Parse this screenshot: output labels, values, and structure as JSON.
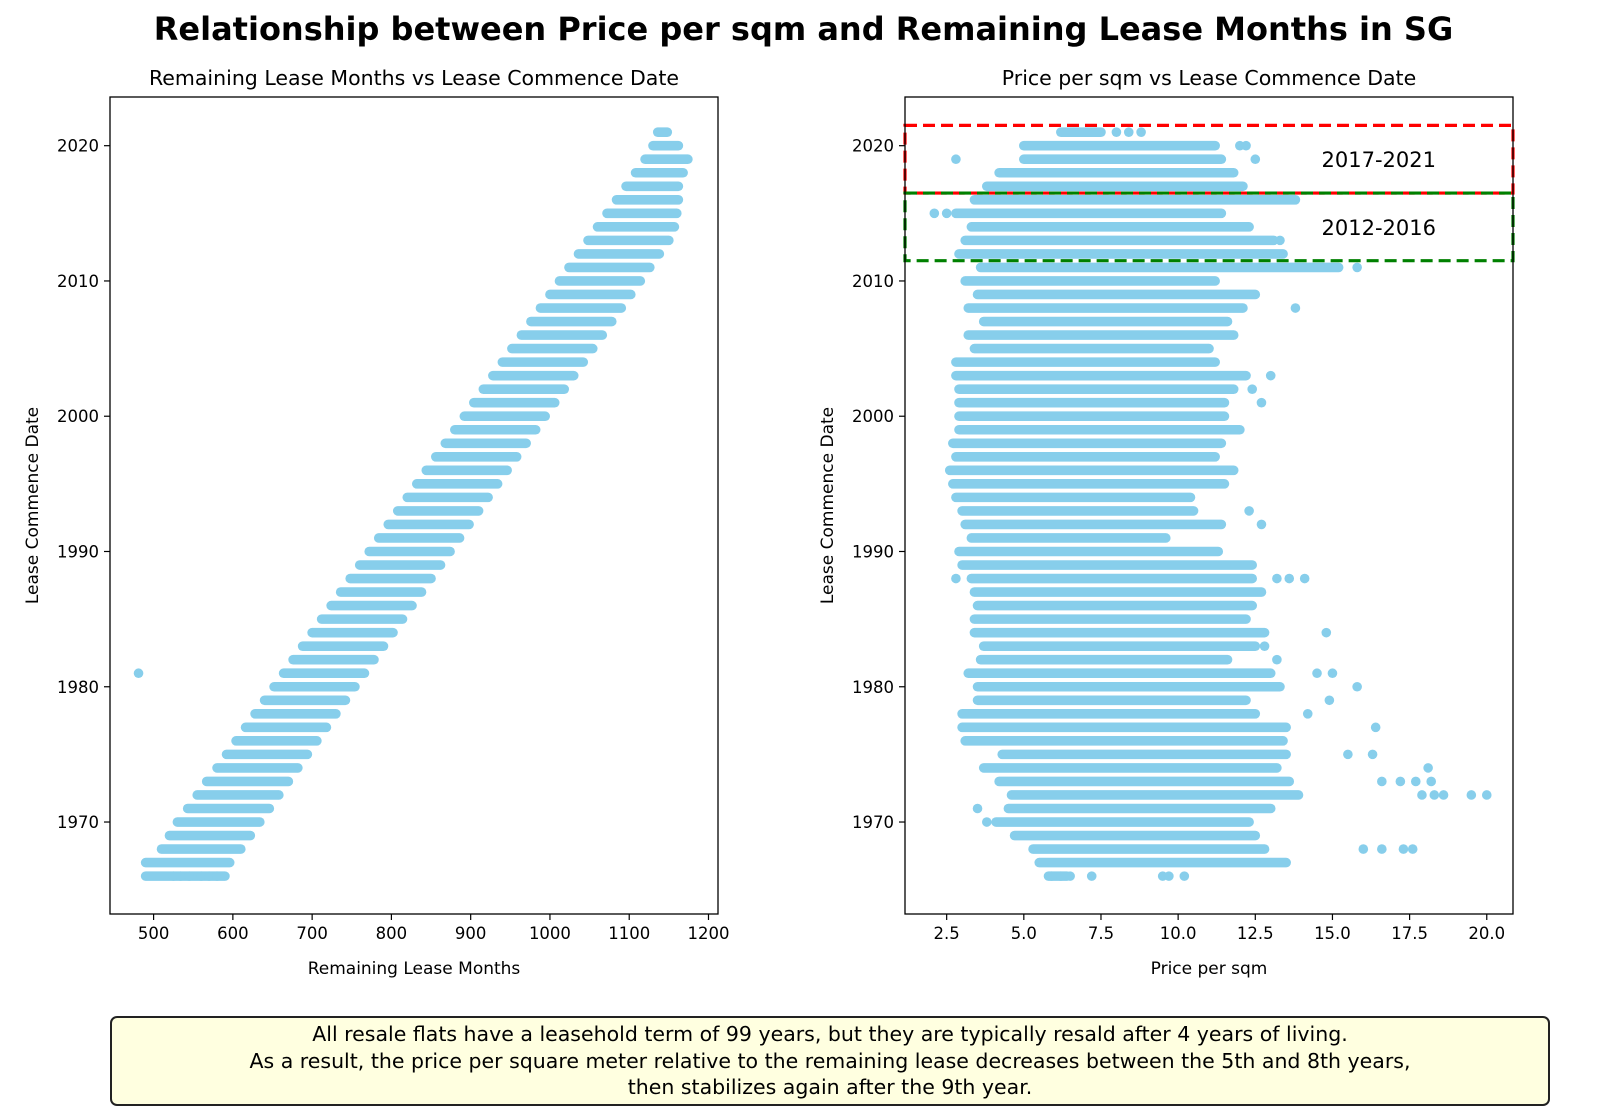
{
  "suptitle": "Relationship between Price per sqm and Remaining Lease Months in SG",
  "note": {
    "lines": [
      "All resale flats have a leasehold term of 99 years, but they are typically resald after 4 years of living.",
      "As a result, the price per square meter relative to the remaining lease decreases between the 5th and 8th years,",
      "then stabilizes again after the 9th year."
    ],
    "background": "#ffffe0"
  },
  "chart_data": [
    {
      "type": "scatter",
      "title": "Remaining Lease Months vs Lease Commence Date",
      "xlabel": "Remaining Lease Months",
      "ylabel": "Lease Commence Date",
      "xlim": [
        445,
        1212
      ],
      "ylim": [
        1963.2,
        2023.6
      ],
      "xticks": [
        500,
        600,
        700,
        800,
        900,
        1000,
        1100,
        1200
      ],
      "yticks": [
        1970,
        1980,
        1990,
        2000,
        2010,
        2020
      ],
      "marker_color": "#87ceeb",
      "grid": false,
      "rows": [
        {
          "year": 1966,
          "x_min": 490,
          "x_max": 590
        },
        {
          "year": 1967,
          "x_min": 490,
          "x_max": 596
        },
        {
          "year": 1968,
          "x_min": 510,
          "x_max": 610
        },
        {
          "year": 1969,
          "x_min": 520,
          "x_max": 622
        },
        {
          "year": 1970,
          "x_min": 530,
          "x_max": 634
        },
        {
          "year": 1971,
          "x_min": 543,
          "x_max": 646
        },
        {
          "year": 1972,
          "x_min": 555,
          "x_max": 658
        },
        {
          "year": 1973,
          "x_min": 567,
          "x_max": 670
        },
        {
          "year": 1974,
          "x_min": 580,
          "x_max": 682
        },
        {
          "year": 1975,
          "x_min": 592,
          "x_max": 694
        },
        {
          "year": 1976,
          "x_min": 604,
          "x_max": 706
        },
        {
          "year": 1977,
          "x_min": 616,
          "x_max": 718
        },
        {
          "year": 1978,
          "x_min": 628,
          "x_max": 730
        },
        {
          "year": 1979,
          "x_min": 640,
          "x_max": 742
        },
        {
          "year": 1980,
          "x_min": 652,
          "x_max": 754
        },
        {
          "year": 1981,
          "x_min": 664,
          "x_max": 766
        },
        {
          "year": 1982,
          "x_min": 676,
          "x_max": 778
        },
        {
          "year": 1983,
          "x_min": 688,
          "x_max": 790
        },
        {
          "year": 1984,
          "x_min": 700,
          "x_max": 802
        },
        {
          "year": 1985,
          "x_min": 712,
          "x_max": 814
        },
        {
          "year": 1986,
          "x_min": 724,
          "x_max": 826
        },
        {
          "year": 1987,
          "x_min": 736,
          "x_max": 838
        },
        {
          "year": 1988,
          "x_min": 748,
          "x_max": 850
        },
        {
          "year": 1989,
          "x_min": 760,
          "x_max": 862
        },
        {
          "year": 1990,
          "x_min": 772,
          "x_max": 874
        },
        {
          "year": 1991,
          "x_min": 784,
          "x_max": 886
        },
        {
          "year": 1992,
          "x_min": 796,
          "x_max": 898
        },
        {
          "year": 1993,
          "x_min": 808,
          "x_max": 910
        },
        {
          "year": 1994,
          "x_min": 820,
          "x_max": 922
        },
        {
          "year": 1995,
          "x_min": 832,
          "x_max": 934
        },
        {
          "year": 1996,
          "x_min": 844,
          "x_max": 946
        },
        {
          "year": 1997,
          "x_min": 856,
          "x_max": 958
        },
        {
          "year": 1998,
          "x_min": 868,
          "x_max": 970
        },
        {
          "year": 1999,
          "x_min": 880,
          "x_max": 982
        },
        {
          "year": 2000,
          "x_min": 892,
          "x_max": 994
        },
        {
          "year": 2001,
          "x_min": 904,
          "x_max": 1006
        },
        {
          "year": 2002,
          "x_min": 916,
          "x_max": 1018
        },
        {
          "year": 2003,
          "x_min": 928,
          "x_max": 1030
        },
        {
          "year": 2004,
          "x_min": 940,
          "x_max": 1042
        },
        {
          "year": 2005,
          "x_min": 952,
          "x_max": 1054
        },
        {
          "year": 2006,
          "x_min": 964,
          "x_max": 1066
        },
        {
          "year": 2007,
          "x_min": 976,
          "x_max": 1078
        },
        {
          "year": 2008,
          "x_min": 988,
          "x_max": 1090
        },
        {
          "year": 2009,
          "x_min": 1000,
          "x_max": 1102
        },
        {
          "year": 2010,
          "x_min": 1012,
          "x_max": 1114
        },
        {
          "year": 2011,
          "x_min": 1024,
          "x_max": 1126
        },
        {
          "year": 2012,
          "x_min": 1036,
          "x_max": 1138
        },
        {
          "year": 2013,
          "x_min": 1048,
          "x_max": 1150
        },
        {
          "year": 2014,
          "x_min": 1060,
          "x_max": 1157
        },
        {
          "year": 2015,
          "x_min": 1072,
          "x_max": 1160
        },
        {
          "year": 2016,
          "x_min": 1084,
          "x_max": 1162
        },
        {
          "year": 2017,
          "x_min": 1096,
          "x_max": 1162
        },
        {
          "year": 2018,
          "x_min": 1108,
          "x_max": 1168
        },
        {
          "year": 2019,
          "x_min": 1120,
          "x_max": 1174
        },
        {
          "year": 2020,
          "x_min": 1130,
          "x_max": 1162
        },
        {
          "year": 2021,
          "x_min": 1136,
          "x_max": 1148
        }
      ],
      "points": [
        {
          "x": 481,
          "y": 1981
        },
        {
          "x": 525,
          "y": 1966
        },
        {
          "x": 534,
          "y": 1966
        },
        {
          "x": 545,
          "y": 1966
        },
        {
          "x": 560,
          "y": 1966
        },
        {
          "x": 570,
          "y": 1966
        },
        {
          "x": 580,
          "y": 1966
        }
      ]
    },
    {
      "type": "scatter",
      "title": "Price per sqm vs Lease Commence Date",
      "xlabel": "Price per sqm",
      "ylabel": "Lease Commence Date",
      "xlim": [
        1.15,
        20.85
      ],
      "ylim": [
        1963.2,
        2023.6
      ],
      "xticks": [
        2.5,
        5.0,
        7.5,
        10.0,
        12.5,
        15.0,
        17.5,
        20.0
      ],
      "xtick_labels": [
        "2.5",
        "5.0",
        "7.5",
        "10.0",
        "12.5",
        "15.0",
        "17.5",
        "20.0"
      ],
      "yticks": [
        1970,
        1980,
        1990,
        2000,
        2010,
        2020
      ],
      "marker_color": "#87ceeb",
      "grid": false,
      "rows": [
        {
          "year": 1966,
          "x_min": 5.8,
          "x_max": 6.4
        },
        {
          "year": 1967,
          "x_min": 5.5,
          "x_max": 13.5
        },
        {
          "year": 1968,
          "x_min": 5.3,
          "x_max": 12.8
        },
        {
          "year": 1969,
          "x_min": 4.7,
          "x_max": 12.5
        },
        {
          "year": 1970,
          "x_min": 4.1,
          "x_max": 12.3
        },
        {
          "year": 1971,
          "x_min": 4.5,
          "x_max": 13.0
        },
        {
          "year": 1972,
          "x_min": 4.6,
          "x_max": 13.9
        },
        {
          "year": 1973,
          "x_min": 4.2,
          "x_max": 13.6
        },
        {
          "year": 1974,
          "x_min": 3.7,
          "x_max": 13.2
        },
        {
          "year": 1975,
          "x_min": 4.3,
          "x_max": 13.5
        },
        {
          "year": 1976,
          "x_min": 3.1,
          "x_max": 13.4
        },
        {
          "year": 1977,
          "x_min": 3.0,
          "x_max": 13.5
        },
        {
          "year": 1978,
          "x_min": 3.0,
          "x_max": 12.5
        },
        {
          "year": 1979,
          "x_min": 3.5,
          "x_max": 12.2
        },
        {
          "year": 1980,
          "x_min": 3.5,
          "x_max": 13.3
        },
        {
          "year": 1981,
          "x_min": 3.2,
          "x_max": 13.0
        },
        {
          "year": 1982,
          "x_min": 3.6,
          "x_max": 11.6
        },
        {
          "year": 1983,
          "x_min": 3.7,
          "x_max": 12.5
        },
        {
          "year": 1984,
          "x_min": 3.4,
          "x_max": 12.8
        },
        {
          "year": 1985,
          "x_min": 3.4,
          "x_max": 12.2
        },
        {
          "year": 1986,
          "x_min": 3.5,
          "x_max": 12.4
        },
        {
          "year": 1987,
          "x_min": 3.4,
          "x_max": 12.7
        },
        {
          "year": 1988,
          "x_min": 3.3,
          "x_max": 12.4
        },
        {
          "year": 1989,
          "x_min": 3.0,
          "x_max": 12.4
        },
        {
          "year": 1990,
          "x_min": 2.9,
          "x_max": 11.3
        },
        {
          "year": 1991,
          "x_min": 3.3,
          "x_max": 9.6
        },
        {
          "year": 1992,
          "x_min": 3.1,
          "x_max": 11.4
        },
        {
          "year": 1993,
          "x_min": 3.0,
          "x_max": 10.5
        },
        {
          "year": 1994,
          "x_min": 2.8,
          "x_max": 10.4
        },
        {
          "year": 1995,
          "x_min": 2.7,
          "x_max": 11.5
        },
        {
          "year": 1996,
          "x_min": 2.6,
          "x_max": 11.8
        },
        {
          "year": 1997,
          "x_min": 2.8,
          "x_max": 11.2
        },
        {
          "year": 1998,
          "x_min": 2.7,
          "x_max": 11.4
        },
        {
          "year": 1999,
          "x_min": 2.9,
          "x_max": 12.0
        },
        {
          "year": 2000,
          "x_min": 2.9,
          "x_max": 11.5
        },
        {
          "year": 2001,
          "x_min": 2.9,
          "x_max": 11.5
        },
        {
          "year": 2002,
          "x_min": 2.9,
          "x_max": 11.8
        },
        {
          "year": 2003,
          "x_min": 2.8,
          "x_max": 12.2
        },
        {
          "year": 2004,
          "x_min": 2.8,
          "x_max": 11.2
        },
        {
          "year": 2005,
          "x_min": 3.4,
          "x_max": 11.0
        },
        {
          "year": 2006,
          "x_min": 3.2,
          "x_max": 11.8
        },
        {
          "year": 2007,
          "x_min": 3.7,
          "x_max": 11.6
        },
        {
          "year": 2008,
          "x_min": 3.2,
          "x_max": 12.1
        },
        {
          "year": 2009,
          "x_min": 3.5,
          "x_max": 12.5
        },
        {
          "year": 2010,
          "x_min": 3.1,
          "x_max": 11.2
        },
        {
          "year": 2011,
          "x_min": 3.6,
          "x_max": 15.2
        },
        {
          "year": 2012,
          "x_min": 2.9,
          "x_max": 13.4
        },
        {
          "year": 2013,
          "x_min": 3.1,
          "x_max": 13.1
        },
        {
          "year": 2014,
          "x_min": 3.3,
          "x_max": 12.3
        },
        {
          "year": 2015,
          "x_min": 2.8,
          "x_max": 11.4
        },
        {
          "year": 2016,
          "x_min": 3.4,
          "x_max": 13.8
        },
        {
          "year": 2017,
          "x_min": 3.8,
          "x_max": 12.1
        },
        {
          "year": 2018,
          "x_min": 4.2,
          "x_max": 11.8
        },
        {
          "year": 2019,
          "x_min": 5.0,
          "x_max": 11.4
        },
        {
          "year": 2020,
          "x_min": 5.0,
          "x_max": 11.2
        },
        {
          "year": 2021,
          "x_min": 6.2,
          "x_max": 7.5
        }
      ],
      "points": [
        {
          "x": 2.1,
          "y": 2015
        },
        {
          "x": 2.5,
          "y": 2015
        },
        {
          "x": 2.8,
          "y": 2019
        },
        {
          "x": 2.8,
          "y": 1988
        },
        {
          "x": 8.0,
          "y": 2021
        },
        {
          "x": 8.4,
          "y": 2021
        },
        {
          "x": 8.8,
          "y": 2021
        },
        {
          "x": 12.0,
          "y": 2020
        },
        {
          "x": 12.2,
          "y": 2020
        },
        {
          "x": 12.5,
          "y": 2019
        },
        {
          "x": 13.3,
          "y": 2013
        },
        {
          "x": 15.8,
          "y": 2011
        },
        {
          "x": 13.8,
          "y": 2008
        },
        {
          "x": 13.0,
          "y": 2003
        },
        {
          "x": 12.4,
          "y": 2002
        },
        {
          "x": 12.7,
          "y": 2001
        },
        {
          "x": 12.3,
          "y": 1993
        },
        {
          "x": 12.7,
          "y": 1992
        },
        {
          "x": 13.2,
          "y": 1988
        },
        {
          "x": 13.6,
          "y": 1988
        },
        {
          "x": 14.1,
          "y": 1988
        },
        {
          "x": 14.8,
          "y": 1984
        },
        {
          "x": 12.8,
          "y": 1983
        },
        {
          "x": 13.2,
          "y": 1982
        },
        {
          "x": 14.5,
          "y": 1981
        },
        {
          "x": 15.0,
          "y": 1981
        },
        {
          "x": 15.8,
          "y": 1980
        },
        {
          "x": 14.9,
          "y": 1979
        },
        {
          "x": 14.2,
          "y": 1978
        },
        {
          "x": 16.4,
          "y": 1977
        },
        {
          "x": 15.5,
          "y": 1975
        },
        {
          "x": 16.3,
          "y": 1975
        },
        {
          "x": 18.1,
          "y": 1974
        },
        {
          "x": 16.6,
          "y": 1973
        },
        {
          "x": 17.2,
          "y": 1973
        },
        {
          "x": 17.7,
          "y": 1973
        },
        {
          "x": 18.2,
          "y": 1973
        },
        {
          "x": 17.9,
          "y": 1972
        },
        {
          "x": 18.3,
          "y": 1972
        },
        {
          "x": 18.6,
          "y": 1972
        },
        {
          "x": 19.5,
          "y": 1972
        },
        {
          "x": 20.0,
          "y": 1972
        },
        {
          "x": 3.5,
          "y": 1971
        },
        {
          "x": 3.8,
          "y": 1970
        },
        {
          "x": 16.0,
          "y": 1968
        },
        {
          "x": 16.6,
          "y": 1968
        },
        {
          "x": 17.3,
          "y": 1968
        },
        {
          "x": 17.6,
          "y": 1968
        },
        {
          "x": 5.9,
          "y": 1966
        },
        {
          "x": 6.2,
          "y": 1966
        },
        {
          "x": 6.5,
          "y": 1966
        },
        {
          "x": 7.2,
          "y": 1966
        },
        {
          "x": 9.5,
          "y": 1966
        },
        {
          "x": 9.7,
          "y": 1966
        },
        {
          "x": 10.2,
          "y": 1966
        }
      ],
      "annotations": [
        {
          "label": "2017-2021",
          "y_range": [
            2016.5,
            2021.5
          ],
          "color": "#ff0000",
          "style": "dashed",
          "label_x": 16.5,
          "label_y": 2019
        },
        {
          "label": "2012-2016",
          "y_range": [
            2011.5,
            2016.5
          ],
          "color": "#008000",
          "style": "dashed",
          "label_x": 16.5,
          "label_y": 2014
        }
      ]
    }
  ]
}
